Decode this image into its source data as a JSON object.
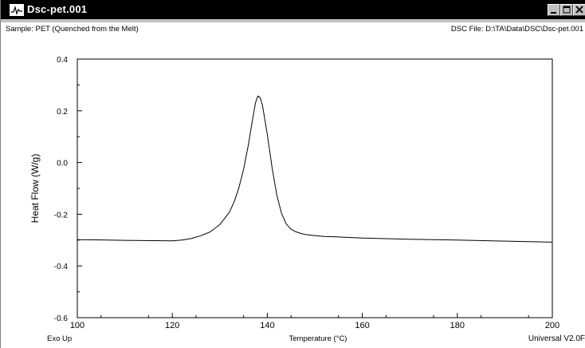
{
  "window": {
    "title": "Dsc-pet.001",
    "icon": "dsc-plot-icon"
  },
  "window_controls": {
    "minimize_icon": "minimize-icon",
    "maximize_icon": "maximize-icon",
    "close_icon": "close-icon"
  },
  "header": {
    "sample": "Sample: PET (Quenched from the Melt)",
    "file": "DSC File: D:\\TA\\Data\\DSC\\Dsc-pet.001"
  },
  "footer": {
    "left": "Exo Up",
    "right": "Universal V2.0F"
  },
  "chart_data": {
    "type": "line",
    "xlabel": "Temperature (°C)",
    "ylabel": "Heat Flow (W/g)",
    "xlim": [
      100,
      200
    ],
    "ylim": [
      -0.6,
      0.4
    ],
    "x_ticks": [
      "100",
      "120",
      "140",
      "160",
      "180",
      "200"
    ],
    "y_ticks": [
      "0.4",
      "0.2",
      "0.0",
      "-0.2",
      "-0.4",
      "-0.6"
    ],
    "grid": false,
    "series": [
      {
        "x": [
          100,
          110,
          120,
          122,
          124,
          126,
          128,
          130,
          132,
          133,
          134,
          135,
          136,
          137,
          137.5,
          138,
          138.5,
          139,
          140,
          141,
          142,
          143,
          144,
          145,
          146,
          147,
          148,
          150,
          152,
          155,
          160,
          170,
          180,
          190,
          200
        ],
        "y": [
          -0.298,
          -0.301,
          -0.303,
          -0.3,
          -0.294,
          -0.283,
          -0.268,
          -0.24,
          -0.193,
          -0.153,
          -0.099,
          -0.027,
          0.068,
          0.178,
          0.23,
          0.257,
          0.251,
          0.22,
          0.108,
          -0.02,
          -0.126,
          -0.197,
          -0.238,
          -0.258,
          -0.268,
          -0.274,
          -0.278,
          -0.283,
          -0.286,
          -0.288,
          -0.292,
          -0.297,
          -0.3,
          -0.304,
          -0.308
        ]
      }
    ]
  }
}
